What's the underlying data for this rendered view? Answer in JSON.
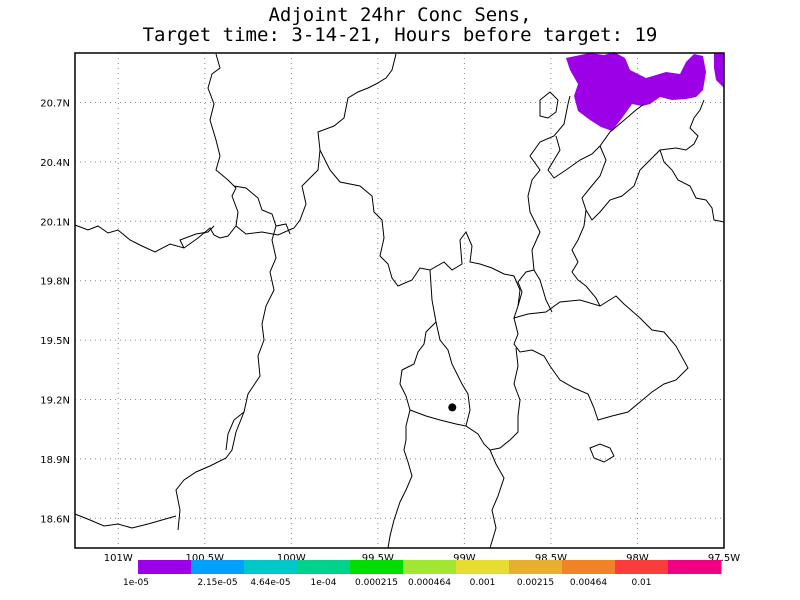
{
  "title": {
    "line1": "Adjoint 24hr Conc Sens,",
    "line2": "Target time: 3-14-21, Hours before target: 19"
  },
  "map": {
    "lat_range": [
      18.45,
      20.95
    ],
    "lon_range": [
      -101.25,
      -97.5
    ],
    "lat_ticks": [
      {
        "value": 20.7,
        "label": "20.7N"
      },
      {
        "value": 20.4,
        "label": "20.4N"
      },
      {
        "value": 20.1,
        "label": "20.1N"
      },
      {
        "value": 19.8,
        "label": "19.8N"
      },
      {
        "value": 19.5,
        "label": "19.5N"
      },
      {
        "value": 19.2,
        "label": "19.2N"
      },
      {
        "value": 18.9,
        "label": "18.9N"
      },
      {
        "value": 18.6,
        "label": "18.6N"
      }
    ],
    "lon_ticks": [
      {
        "value": -101.0,
        "label": "101W"
      },
      {
        "value": -100.5,
        "label": "100.5W"
      },
      {
        "value": -100.0,
        "label": "100W"
      },
      {
        "value": -99.5,
        "label": "99.5W"
      },
      {
        "value": -99.0,
        "label": "99W"
      },
      {
        "value": -98.5,
        "label": "98.5W"
      },
      {
        "value": -98.0,
        "label": "98W"
      },
      {
        "value": -97.5,
        "label": "97.5W"
      }
    ],
    "grid": "dotted",
    "target_marker": {
      "lon": -99.07,
      "lat": 19.16
    },
    "sensitivity_fill_color": "#9b00e6"
  },
  "colorbar": {
    "colors": [
      "#9b00e6",
      "#00a0ff",
      "#00c8c8",
      "#00d28c",
      "#00dc00",
      "#a0e632",
      "#e6dc32",
      "#e6af2d",
      "#f08228",
      "#fa3c3c",
      "#f00082"
    ],
    "labels": [
      "1e-05",
      "2.15e-05",
      "4.64e-05",
      "1e-04",
      "0.000215",
      "0.000464",
      "0.001",
      "0.00215",
      "0.00464",
      "0.01"
    ]
  }
}
